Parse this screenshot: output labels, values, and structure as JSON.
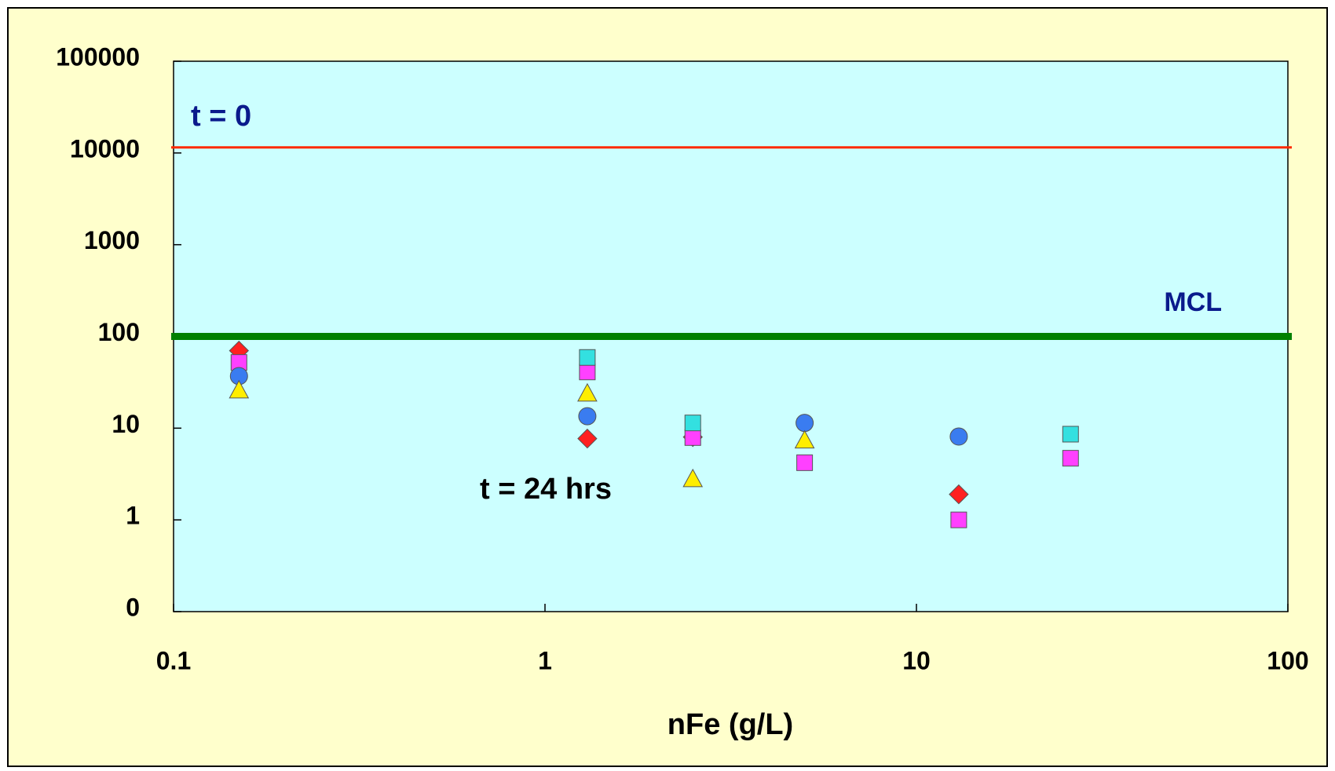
{
  "chart_data": {
    "type": "scatter",
    "xlabel": "nFe (g/L)",
    "xscale": "log",
    "yscale": "log",
    "xlim": [
      0.1,
      100
    ],
    "ylim": [
      0.1,
      100000
    ],
    "xticks": [
      0.1,
      1,
      10,
      100
    ],
    "yticks": [
      {
        "value": 0.1,
        "label": "0"
      },
      1,
      10,
      100,
      1000,
      10000,
      100000
    ],
    "background": "#ccffff",
    "hlines": [
      {
        "value": 11500,
        "color": "#ff2a00",
        "width": 3
      },
      {
        "value": 100,
        "color": "#008000",
        "width": 9
      }
    ],
    "annotations": [
      "t = 0",
      "MCL",
      "t = 24 hrs"
    ],
    "series": [
      {
        "marker": "diamond",
        "color": "#ff2020",
        "x": [
          0.15,
          1.3,
          2.5,
          13
        ],
        "values": [
          70,
          7.7,
          8,
          1.9
        ]
      },
      {
        "marker": "square",
        "color": "#ff40ff",
        "x": [
          0.15,
          1.3,
          2.5,
          5,
          13,
          26
        ],
        "values": [
          52,
          41,
          7.9,
          4.2,
          1,
          4.7
        ]
      },
      {
        "marker": "circle",
        "color": "#3a7cf0",
        "x": [
          0.15,
          1.3,
          5,
          13
        ],
        "values": [
          37,
          13.5,
          11.4,
          8.1
        ]
      },
      {
        "marker": "triangle",
        "color": "#ffee00",
        "x": [
          0.15,
          1.3,
          2.5,
          5
        ],
        "values": [
          26,
          24,
          2.8,
          7.4
        ]
      },
      {
        "marker": "square",
        "color": "#33e0e0",
        "x": [
          1.3,
          2.5,
          26
        ],
        "values": [
          59,
          11.4,
          8.6
        ]
      }
    ]
  }
}
